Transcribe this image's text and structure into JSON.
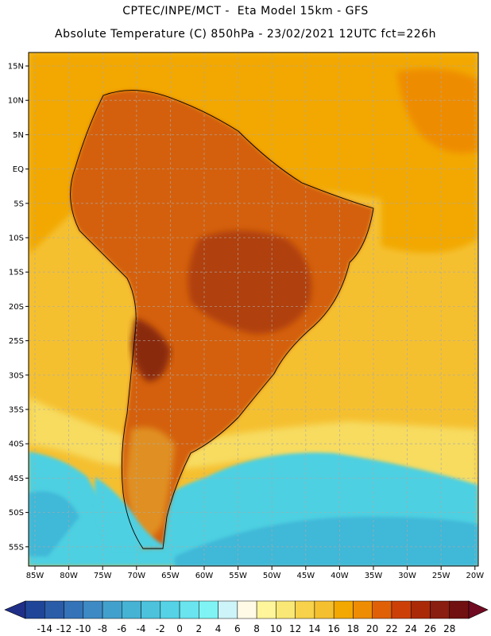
{
  "header": {
    "title_line_1": "CPTEC/INPE/MCT -  Eta Model 15km - GFS",
    "title_line_2": "Absolute Temperature (C) 850hPa - 23/02/2021 12UTC fct=226h"
  },
  "map": {
    "lat_labels": [
      "15N",
      "10N",
      "5N",
      "EQ",
      "5S",
      "10S",
      "15S",
      "20S",
      "25S",
      "30S",
      "35S",
      "40S",
      "45S",
      "50S",
      "55S"
    ],
    "lon_labels": [
      "85W",
      "80W",
      "75W",
      "70W",
      "65W",
      "60W",
      "55W",
      "50W",
      "45W",
      "40W",
      "35W",
      "30W",
      "25W",
      "20W"
    ],
    "colors": {
      "ocean_north": "#f2a800",
      "ocean_mid": "#f5c030",
      "ocean_south_pale": "#f7dc60",
      "ocean_cold": "#4dd0e1",
      "ocean_cool": "#40b8d8",
      "land_warm": "#d46010",
      "land_hot": "#b04008",
      "land_hottest": "#8a2a08",
      "patagonia": "#e09020"
    }
  },
  "colorbar": {
    "labels": [
      "-14",
      "-12",
      "-10",
      "-8",
      "-6",
      "-4",
      "-2",
      "0",
      "2",
      "4",
      "6",
      "8",
      "10",
      "12",
      "14",
      "16",
      "18",
      "20",
      "22",
      "24",
      "26",
      "28"
    ],
    "colors": [
      "#1f4598",
      "#2a5ca8",
      "#3573b8",
      "#3e8ac4",
      "#42a0cc",
      "#46b2d4",
      "#4cc2dc",
      "#55d2e6",
      "#6ae4ee",
      "#80f4f4",
      "#cdf4f8",
      "#fffae6",
      "#fff59a",
      "#fae876",
      "#f7d24a",
      "#f5c030",
      "#f2a800",
      "#ee8c04",
      "#e06008",
      "#cc4008",
      "#aa2a08",
      "#8a1e10",
      "#701010"
    ],
    "left_arrow_color": "#1f2f88",
    "right_arrow_color": "#700a20"
  }
}
